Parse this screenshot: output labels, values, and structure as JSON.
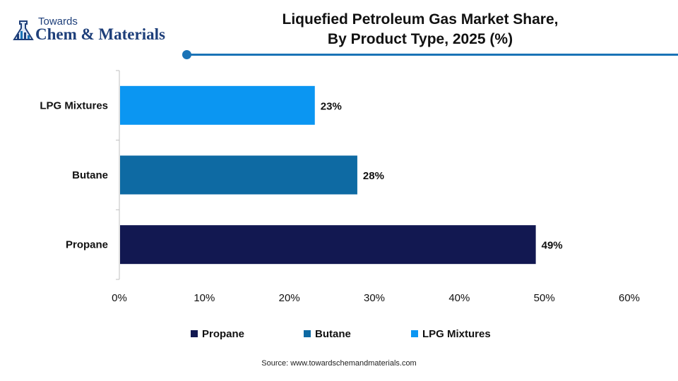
{
  "logo": {
    "line1": "Towards",
    "line2": "Chem & Materials"
  },
  "title": {
    "line1": "Liquefied Petroleum Gas Market Share,",
    "line2": "By Product Type, 2025 (%)"
  },
  "colors": {
    "propane": "#121851",
    "butane": "#0e6aa3",
    "lpg_mixtures": "#0b96f2",
    "accent_rule": "#1a73b6"
  },
  "chart_data": {
    "type": "bar",
    "orientation": "horizontal",
    "categories": [
      "LPG Mixtures",
      "Butane",
      "Propane"
    ],
    "values": [
      23,
      28,
      49
    ],
    "data_labels": [
      "23%",
      "28%",
      "49%"
    ],
    "colors": [
      "#0b96f2",
      "#0e6aa3",
      "#121851"
    ],
    "xlim": [
      0,
      60
    ],
    "xticks": [
      0,
      10,
      20,
      30,
      40,
      50,
      60
    ],
    "xtick_labels": [
      "0%",
      "10%",
      "20%",
      "30%",
      "40%",
      "50%",
      "60%"
    ],
    "grid": false,
    "legend_position": "bottom",
    "legend": [
      {
        "name": "Propane",
        "color": "#121851"
      },
      {
        "name": "Butane",
        "color": "#0e6aa3"
      },
      {
        "name": "LPG Mixtures",
        "color": "#0b96f2"
      }
    ]
  },
  "source": "Source: www.towardschemandmaterials.com"
}
